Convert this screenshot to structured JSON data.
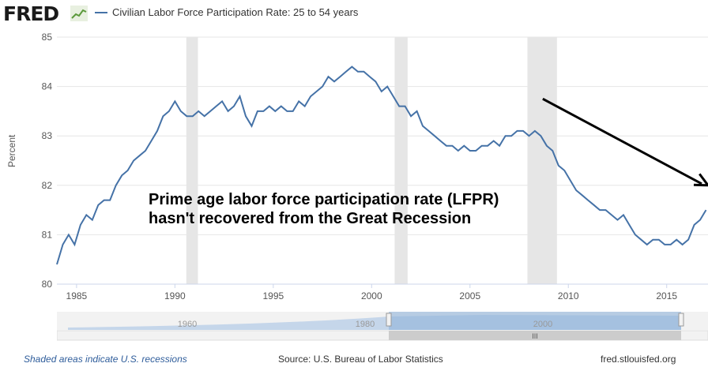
{
  "header": {
    "logo": "FRED",
    "legend_label": "Civilian Labor Force Participation Rate: 25 to 54 years"
  },
  "annotation": {
    "line1": "Prime age labor force participation rate (LFPR)",
    "line2": "hasn't recovered from the Great Recession"
  },
  "footer": {
    "recession_note": "Shaded areas indicate U.S. recessions",
    "source": "Source: U.S. Bureau of Labor Statistics",
    "site": "fred.stlouisfed.org"
  },
  "navigator": {
    "tick_labels": [
      "1960",
      "1980",
      "2000"
    ],
    "scroll_grip": "III"
  },
  "colors": {
    "series": "#4572a7",
    "recession": "#e6e6e6",
    "grid": "#e6e6e6",
    "navigator_fill": "#8fb2d9",
    "arrow": "#000000"
  },
  "chart_data": {
    "type": "line",
    "title": "",
    "xlabel": "",
    "ylabel": "Percent",
    "xlim": [
      1984.0,
      2017.1
    ],
    "ylim": [
      80,
      85
    ],
    "y_ticks": [
      80,
      81,
      82,
      83,
      84,
      85
    ],
    "x_ticks": [
      1985,
      1990,
      1995,
      2000,
      2005,
      2010,
      2015
    ],
    "grid": true,
    "recessions": [
      [
        1990.58,
        1991.17
      ],
      [
        2001.17,
        2001.83
      ],
      [
        2007.92,
        2009.42
      ]
    ],
    "arrow": {
      "from": [
        2008.7,
        83.75
      ],
      "to": [
        2017.1,
        82.0
      ]
    },
    "series": [
      {
        "name": "Civilian Labor Force Participation Rate: 25 to 54 years",
        "x": [
          1984.0,
          1984.3,
          1984.6,
          1984.9,
          1985.2,
          1985.5,
          1985.8,
          1986.1,
          1986.4,
          1986.7,
          1987.0,
          1987.3,
          1987.6,
          1987.9,
          1988.2,
          1988.5,
          1988.8,
          1989.1,
          1989.4,
          1989.7,
          1990.0,
          1990.3,
          1990.6,
          1990.9,
          1991.2,
          1991.5,
          1991.8,
          1992.1,
          1992.4,
          1992.7,
          1993.0,
          1993.3,
          1993.6,
          1993.9,
          1994.2,
          1994.5,
          1994.8,
          1995.1,
          1995.4,
          1995.7,
          1996.0,
          1996.3,
          1996.6,
          1996.9,
          1997.2,
          1997.5,
          1997.8,
          1998.1,
          1998.4,
          1998.7,
          1999.0,
          1999.3,
          1999.6,
          1999.9,
          2000.2,
          2000.5,
          2000.8,
          2001.1,
          2001.4,
          2001.7,
          2002.0,
          2002.3,
          2002.6,
          2002.9,
          2003.2,
          2003.5,
          2003.8,
          2004.1,
          2004.4,
          2004.7,
          2005.0,
          2005.3,
          2005.6,
          2005.9,
          2006.2,
          2006.5,
          2006.8,
          2007.1,
          2007.4,
          2007.7,
          2008.0,
          2008.3,
          2008.6,
          2008.9,
          2009.2,
          2009.5,
          2009.8,
          2010.1,
          2010.4,
          2010.7,
          2011.0,
          2011.3,
          2011.6,
          2011.9,
          2012.2,
          2012.5,
          2012.8,
          2013.1,
          2013.4,
          2013.7,
          2014.0,
          2014.3,
          2014.6,
          2014.9,
          2015.2,
          2015.5,
          2015.8,
          2016.1,
          2016.4,
          2016.7,
          2017.0
        ],
        "values": [
          80.4,
          80.8,
          81.0,
          80.8,
          81.2,
          81.4,
          81.3,
          81.6,
          81.7,
          81.7,
          82.0,
          82.2,
          82.3,
          82.5,
          82.6,
          82.7,
          82.9,
          83.1,
          83.4,
          83.5,
          83.7,
          83.5,
          83.4,
          83.4,
          83.5,
          83.4,
          83.5,
          83.6,
          83.7,
          83.5,
          83.6,
          83.8,
          83.4,
          83.2,
          83.5,
          83.5,
          83.6,
          83.5,
          83.6,
          83.5,
          83.5,
          83.7,
          83.6,
          83.8,
          83.9,
          84.0,
          84.2,
          84.1,
          84.2,
          84.3,
          84.4,
          84.3,
          84.3,
          84.2,
          84.1,
          83.9,
          84.0,
          83.8,
          83.6,
          83.6,
          83.4,
          83.5,
          83.2,
          83.1,
          83.0,
          82.9,
          82.8,
          82.8,
          82.7,
          82.8,
          82.7,
          82.7,
          82.8,
          82.8,
          82.9,
          82.8,
          83.0,
          83.0,
          83.1,
          83.1,
          83.0,
          83.1,
          83.0,
          82.8,
          82.7,
          82.4,
          82.3,
          82.1,
          81.9,
          81.8,
          81.7,
          81.6,
          81.5,
          81.5,
          81.4,
          81.3,
          81.4,
          81.2,
          81.0,
          80.9,
          80.8,
          80.9,
          80.9,
          80.8,
          80.8,
          80.9,
          80.8,
          80.9,
          81.2,
          81.3,
          81.5
        ]
      }
    ]
  }
}
